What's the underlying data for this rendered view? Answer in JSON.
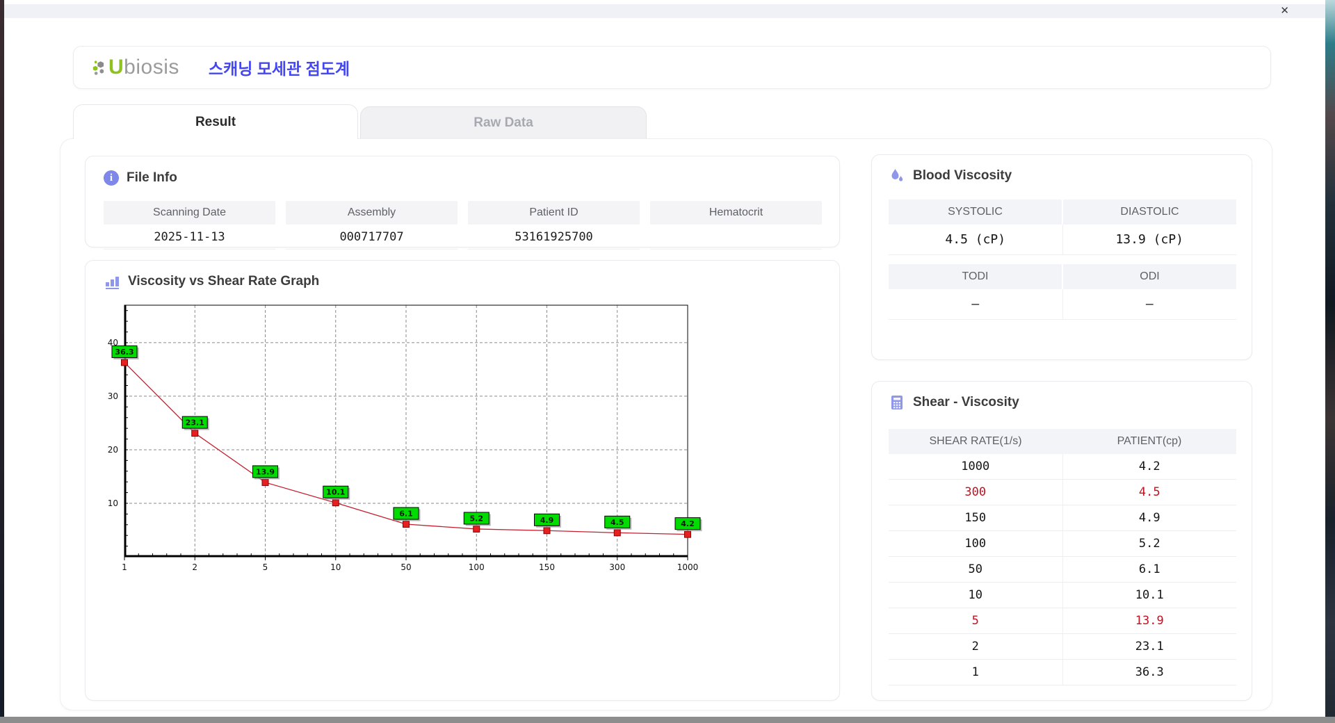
{
  "window": {
    "close_label": "✕"
  },
  "header": {
    "logo_u": "U",
    "logo_rest": "biosis",
    "title": "스캐닝 모세관 점도계"
  },
  "tabs": {
    "result": "Result",
    "raw_data": "Raw Data"
  },
  "file_info": {
    "title": "File Info",
    "fields": [
      {
        "label": "Scanning Date",
        "value": "2025-11-13"
      },
      {
        "label": "Assembly",
        "value": "000717707"
      },
      {
        "label": "Patient ID",
        "value": "53161925700"
      },
      {
        "label": "Hematocrit",
        "value": ""
      }
    ]
  },
  "blood_viscosity": {
    "title": "Blood Viscosity",
    "rows": [
      {
        "cols": [
          {
            "label": "SYSTOLIC",
            "value": "4.5 (cP)"
          },
          {
            "label": "DIASTOLIC",
            "value": "13.9 (cP)"
          }
        ]
      },
      {
        "cols": [
          {
            "label": "TODI",
            "value": "–"
          },
          {
            "label": "ODI",
            "value": "–"
          }
        ]
      }
    ]
  },
  "shear_viscosity": {
    "title": "Shear - Viscosity",
    "columns": [
      "SHEAR RATE(1/s)",
      "PATIENT(cp)"
    ],
    "rows": [
      {
        "rate": "1000",
        "patient": "4.2",
        "highlight": false
      },
      {
        "rate": "300",
        "patient": "4.5",
        "highlight": true
      },
      {
        "rate": "150",
        "patient": "4.9",
        "highlight": false
      },
      {
        "rate": "100",
        "patient": "5.2",
        "highlight": false
      },
      {
        "rate": "50",
        "patient": "6.1",
        "highlight": false
      },
      {
        "rate": "10",
        "patient": "10.1",
        "highlight": false
      },
      {
        "rate": "5",
        "patient": "13.9",
        "highlight": true
      },
      {
        "rate": "2",
        "patient": "23.1",
        "highlight": false
      },
      {
        "rate": "1",
        "patient": "36.3",
        "highlight": false
      }
    ]
  },
  "chart_data": {
    "type": "line",
    "title": "Viscosity vs Shear Rate Graph",
    "categories": [
      "1",
      "2",
      "5",
      "10",
      "50",
      "100",
      "150",
      "300",
      "1000"
    ],
    "values": [
      36.3,
      23.1,
      13.9,
      10.1,
      6.1,
      5.2,
      4.9,
      4.5,
      4.2
    ],
    "xlabel": "",
    "ylabel": "",
    "ylim": [
      0,
      47
    ],
    "yticks": [
      10,
      20,
      30,
      40
    ],
    "grid": true,
    "legend": "none",
    "x_spacing": "categorical-equal",
    "line_color": "#c42030",
    "marker_color": "#e62020",
    "marker_stroke": "#8c0000",
    "label_bg": "#00dc00",
    "label_border": "#000000",
    "grid_color": "#8a8a8a",
    "axis_color": "#000000"
  },
  "colors": {
    "accent_purple": "#7f88e8",
    "brand_green": "#8dc21f",
    "title_blue": "#4447f0",
    "highlight_red": "#c41020",
    "header_gray_bg": "#f3f4f7"
  }
}
